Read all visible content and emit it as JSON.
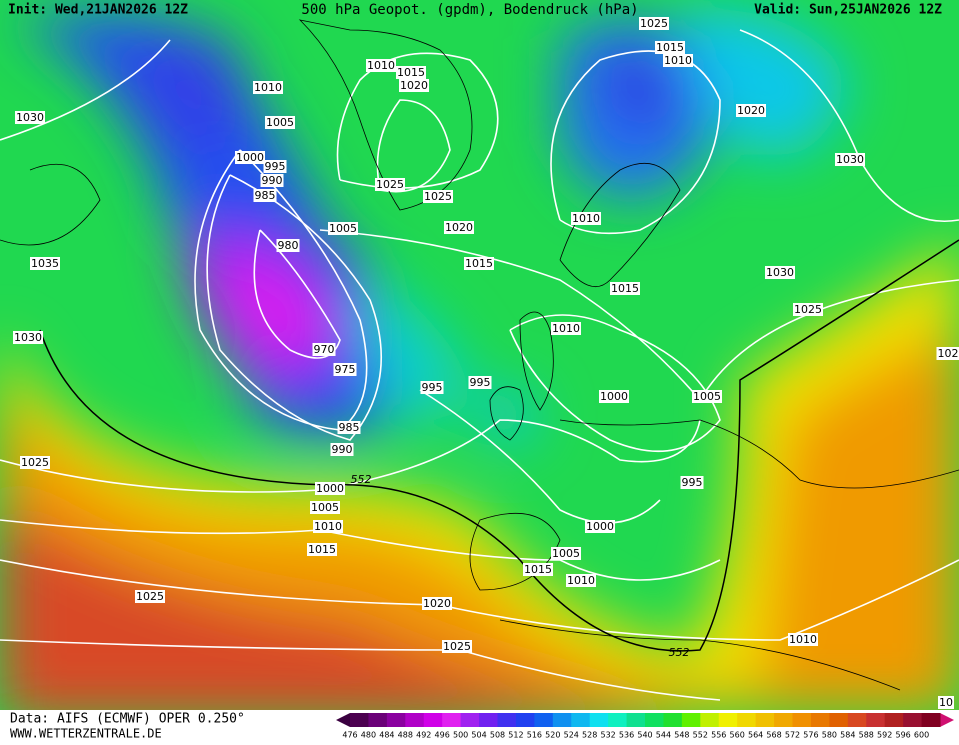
{
  "header": {
    "init": "Init: Wed,21JAN2026 12Z",
    "title": "500 hPa Geopot. (gpdm), Bodendruck (hPa)",
    "valid": "Valid: Sun,25JAN2026 12Z"
  },
  "isobar_labels": [
    "1030",
    "1010",
    "1005",
    "1000",
    "995",
    "990",
    "985",
    "980",
    "1035",
    "1030",
    "970",
    "975",
    "985",
    "990",
    "1025",
    "552",
    "1000",
    "1005",
    "1010",
    "1015",
    "1025",
    "1020",
    "1025",
    "1010",
    "1015",
    "1020",
    "1025",
    "1025",
    "1005",
    "1020",
    "1015",
    "995",
    "995",
    "1025",
    "1015",
    "1010",
    "1020",
    "1030",
    "1010",
    "1015",
    "1010",
    "1030",
    "1025",
    "1000",
    "1005",
    "995",
    "1000",
    "1005",
    "1015",
    "1010",
    "552",
    "1010",
    "102",
    "10"
  ],
  "legend": {
    "values": [
      476,
      480,
      484,
      488,
      492,
      496,
      500,
      504,
      508,
      512,
      516,
      520,
      524,
      528,
      532,
      536,
      540,
      544,
      548,
      552,
      556,
      560,
      564,
      568,
      572,
      576,
      580,
      584,
      588,
      592,
      596,
      600
    ],
    "colors": [
      "#4b0050",
      "#6a0078",
      "#8a00a0",
      "#b000c8",
      "#d000e8",
      "#e020f0",
      "#a020f0",
      "#7020f0",
      "#4030f0",
      "#2040f0",
      "#1060f0",
      "#1090f0",
      "#10b8f0",
      "#10e0f0",
      "#10f0c0",
      "#10e090",
      "#10e060",
      "#20e030",
      "#60f000",
      "#c0f000",
      "#f0f000",
      "#f0d800",
      "#f0c000",
      "#f0a800",
      "#f09000",
      "#e87800",
      "#e06000",
      "#d84820",
      "#c83030",
      "#b02020",
      "#981030",
      "#800020"
    ]
  },
  "footer": {
    "source": "Data: AIFS (ECMWF) OPER 0.250°",
    "site": "WWW.WETTERZENTRALE.DE"
  }
}
